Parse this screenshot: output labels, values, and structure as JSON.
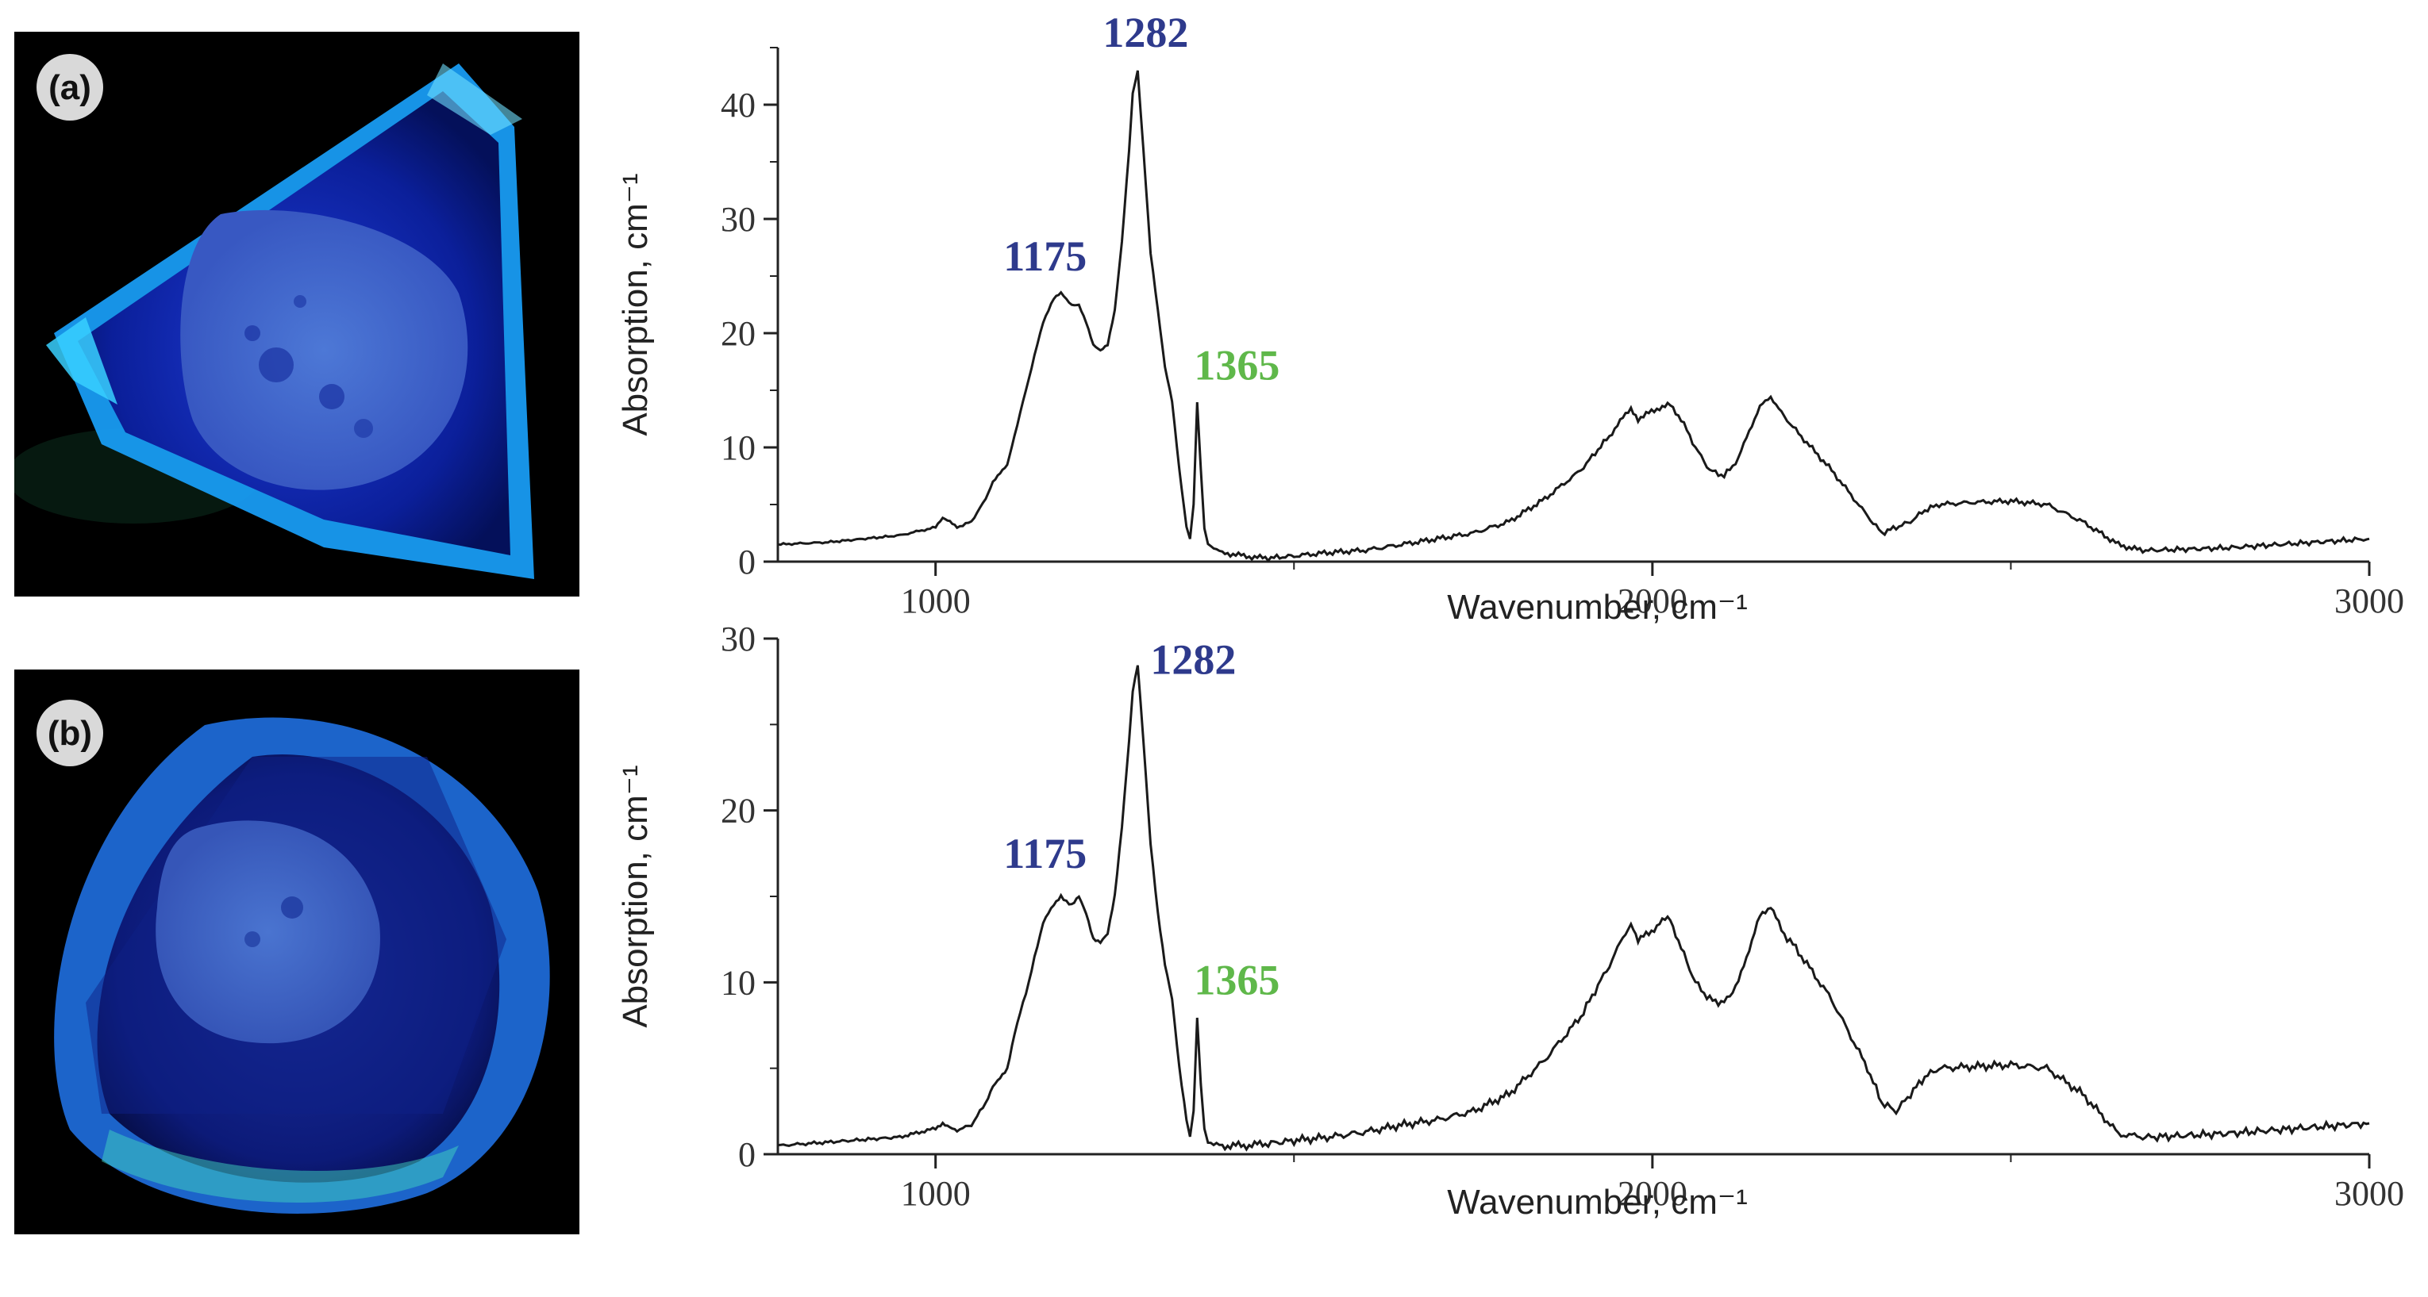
{
  "panels": [
    {
      "label": "(a)"
    },
    {
      "label": "(b)"
    }
  ],
  "colors": {
    "peak_blue": "#2e3a8c",
    "peak_green": "#5fb84a",
    "line": "#1a1a1a"
  },
  "chart_data": [
    {
      "type": "line",
      "panel": "(a)",
      "title": "",
      "xlabel": "Wavenumber, cm⁻¹",
      "ylabel": "Absorption, cm⁻¹",
      "xlim": [
        780,
        3000
      ],
      "ylim": [
        0,
        45
      ],
      "xticks": [
        1000,
        2000,
        3000
      ],
      "yticks": [
        0,
        10,
        20,
        30,
        40
      ],
      "annotations": [
        {
          "text": "1175",
          "x": 1175,
          "y": 23,
          "color": "blue"
        },
        {
          "text": "1282",
          "x": 1282,
          "y": 43,
          "color": "blue"
        },
        {
          "text": "1365",
          "x": 1365,
          "y": 14,
          "color": "green"
        }
      ],
      "series": [
        {
          "name": "spectrum",
          "x": [
            780,
            850,
            950,
            1000,
            1010,
            1020,
            1030,
            1050,
            1070,
            1080,
            1090,
            1100,
            1110,
            1130,
            1150,
            1165,
            1175,
            1190,
            1200,
            1210,
            1220,
            1230,
            1240,
            1250,
            1260,
            1270,
            1275,
            1282,
            1290,
            1300,
            1310,
            1320,
            1330,
            1340,
            1350,
            1355,
            1360,
            1365,
            1370,
            1375,
            1380,
            1400,
            1430,
            1460,
            1500,
            1550,
            1600,
            1650,
            1700,
            1750,
            1800,
            1850,
            1900,
            1940,
            1970,
            1980,
            1995,
            2010,
            2025,
            2040,
            2060,
            2080,
            2100,
            2120,
            2135,
            2150,
            2165,
            2180,
            2200,
            2250,
            2300,
            2320,
            2340,
            2360,
            2380,
            2400,
            2450,
            2500,
            2550,
            2600,
            2650,
            2680,
            2700,
            2800,
            2900,
            3000
          ],
          "values": [
            1.5,
            1.7,
            2.3,
            3.0,
            3.8,
            3.5,
            3.0,
            3.5,
            5.5,
            7.0,
            7.8,
            8.5,
            11,
            16,
            21,
            23,
            23.5,
            22.5,
            22.5,
            21,
            19,
            18.5,
            19,
            22,
            28,
            36,
            41,
            43,
            36,
            27,
            22,
            17,
            14,
            8,
            3,
            2,
            5,
            14,
            8,
            3,
            1.5,
            0.8,
            0.5,
            0.3,
            0.5,
            0.8,
            1.0,
            1.5,
            2.0,
            2.5,
            3.5,
            5.5,
            8,
            11,
            13.5,
            12.5,
            13,
            13.5,
            13.7,
            12.5,
            10,
            8,
            7.5,
            9,
            11.5,
            13.5,
            14.5,
            13,
            11.5,
            8,
            4,
            2.5,
            3,
            3.5,
            4.5,
            5,
            5.2,
            5.3,
            5,
            3.5,
            1.5,
            1.0,
            1.0,
            1.2,
            1.6,
            2.0
          ]
        }
      ]
    },
    {
      "type": "line",
      "panel": "(b)",
      "title": "",
      "xlabel": "Wavenumber, cm⁻¹",
      "ylabel": "Absorption, cm⁻¹",
      "xlim": [
        780,
        3000
      ],
      "ylim": [
        0,
        30
      ],
      "xticks": [
        1000,
        2000,
        3000
      ],
      "yticks": [
        0,
        10,
        20,
        30
      ],
      "annotations": [
        {
          "text": "1175",
          "x": 1175,
          "y": 15,
          "color": "blue"
        },
        {
          "text": "1282",
          "x": 1282,
          "y": 28.5,
          "color": "blue"
        },
        {
          "text": "1365",
          "x": 1365,
          "y": 8,
          "color": "green"
        }
      ],
      "series": [
        {
          "name": "spectrum",
          "x": [
            780,
            850,
            950,
            1000,
            1010,
            1020,
            1030,
            1050,
            1070,
            1080,
            1090,
            1100,
            1110,
            1130,
            1150,
            1165,
            1175,
            1190,
            1200,
            1210,
            1220,
            1230,
            1240,
            1250,
            1260,
            1270,
            1275,
            1282,
            1290,
            1300,
            1310,
            1320,
            1330,
            1340,
            1350,
            1355,
            1360,
            1365,
            1370,
            1375,
            1380,
            1400,
            1430,
            1460,
            1500,
            1550,
            1600,
            1650,
            1700,
            1750,
            1800,
            1850,
            1900,
            1940,
            1970,
            1980,
            1995,
            2010,
            2025,
            2040,
            2060,
            2080,
            2100,
            2120,
            2135,
            2150,
            2165,
            2180,
            2200,
            2250,
            2300,
            2320,
            2340,
            2360,
            2380,
            2400,
            2450,
            2500,
            2550,
            2600,
            2650,
            2680,
            2700,
            2800,
            2900,
            3000
          ],
          "values": [
            0.5,
            0.7,
            1.0,
            1.5,
            1.8,
            1.6,
            1.4,
            1.7,
            3.0,
            4.0,
            4.5,
            5.0,
            7,
            10,
            13.5,
            14.5,
            15,
            14.5,
            15,
            14,
            12.5,
            12.3,
            12.8,
            15,
            19,
            24,
            27,
            28.5,
            24,
            18,
            14,
            11,
            9,
            5,
            2,
            1,
            2.5,
            8,
            4,
            1.5,
            0.7,
            0.5,
            0.5,
            0.6,
            0.8,
            1.0,
            1.3,
            1.7,
            2.0,
            2.5,
            3.5,
            5.5,
            8,
            11,
            13.5,
            12.5,
            12.8,
            13.5,
            13.7,
            12,
            10,
            9,
            8.8,
            10,
            12,
            13.8,
            14.5,
            13,
            12,
            9,
            5,
            3,
            2.5,
            3.5,
            4.5,
            5,
            5.1,
            5.2,
            5,
            3.5,
            1.2,
            1.0,
            1.0,
            1.2,
            1.5,
            1.8
          ]
        }
      ]
    }
  ]
}
